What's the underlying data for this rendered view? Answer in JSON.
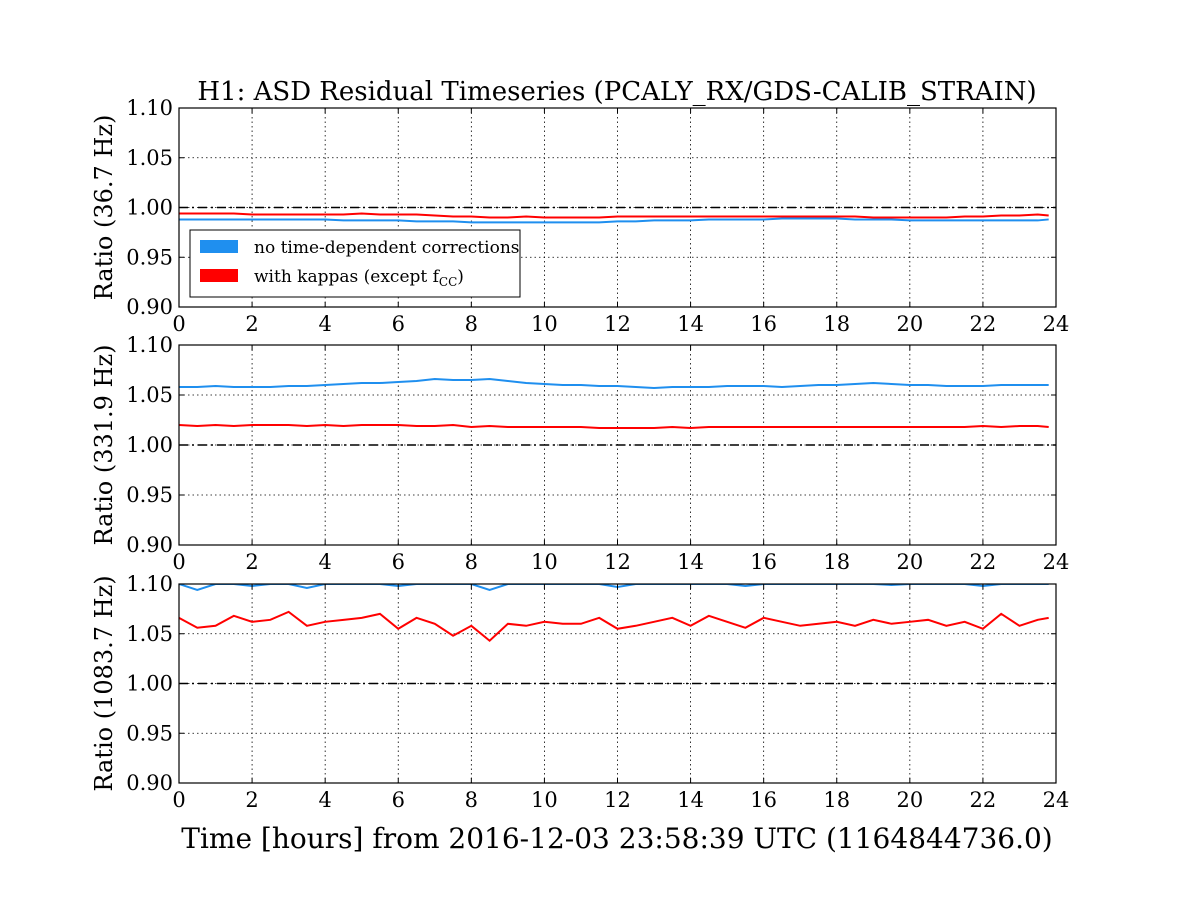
{
  "title": "H1: ASD Residual Timeseries (PCALY_RX/GDS-CALIB_STRAIN)",
  "xlabel": "Time [hours] from 2016-12-03 23:58:39 UTC (1164844736.0)",
  "colors": {
    "no_correction": "#1f8fef",
    "with_kappas": "#ff0000",
    "reference": "#000000"
  },
  "legend": {
    "placement": "lower-left of top panel",
    "entries": [
      {
        "label": "no time-dependent corrections",
        "color": "#1f8fef"
      },
      {
        "label": "with kappas (except f",
        "subscript": "CC",
        "suffix": ")",
        "color": "#ff0000"
      }
    ]
  },
  "chart_data": [
    {
      "type": "line",
      "ylabel": "Ratio (36.7 Hz)",
      "xlim": [
        0,
        24
      ],
      "ylim": [
        0.9,
        1.1
      ],
      "xticks": [
        "0",
        "2",
        "4",
        "6",
        "8",
        "10",
        "12",
        "14",
        "16",
        "18",
        "20",
        "22",
        "24"
      ],
      "yticks": [
        "0.90",
        "0.95",
        "1.00",
        "1.05",
        "1.10"
      ],
      "grid": true,
      "reference_line": 1.0,
      "x": [
        0.0,
        0.5,
        1.0,
        1.5,
        2.0,
        2.5,
        3.0,
        3.5,
        4.0,
        4.5,
        5.0,
        5.5,
        6.0,
        6.5,
        7.0,
        7.5,
        8.0,
        8.5,
        9.0,
        9.5,
        10.0,
        10.5,
        11.0,
        11.5,
        12.0,
        12.5,
        13.0,
        13.5,
        14.0,
        14.5,
        15.0,
        15.5,
        16.0,
        16.5,
        17.0,
        17.5,
        18.0,
        18.5,
        19.0,
        19.5,
        20.0,
        20.5,
        21.0,
        21.5,
        22.0,
        22.5,
        23.0,
        23.5,
        23.8
      ],
      "series": [
        {
          "name": "no time-dependent corrections",
          "color": "#1f8fef",
          "values": [
            0.988,
            0.988,
            0.988,
            0.988,
            0.988,
            0.988,
            0.988,
            0.988,
            0.988,
            0.987,
            0.987,
            0.987,
            0.987,
            0.986,
            0.986,
            0.986,
            0.985,
            0.985,
            0.985,
            0.985,
            0.985,
            0.985,
            0.985,
            0.985,
            0.986,
            0.986,
            0.987,
            0.987,
            0.987,
            0.988,
            0.988,
            0.988,
            0.988,
            0.989,
            0.989,
            0.989,
            0.989,
            0.988,
            0.988,
            0.988,
            0.987,
            0.987,
            0.987,
            0.987,
            0.987,
            0.987,
            0.987,
            0.987,
            0.988
          ]
        },
        {
          "name": "with kappas (except fCC)",
          "color": "#ff0000",
          "values": [
            0.994,
            0.994,
            0.994,
            0.994,
            0.993,
            0.993,
            0.993,
            0.993,
            0.993,
            0.993,
            0.994,
            0.993,
            0.993,
            0.993,
            0.992,
            0.991,
            0.991,
            0.99,
            0.99,
            0.991,
            0.99,
            0.99,
            0.99,
            0.99,
            0.991,
            0.991,
            0.991,
            0.991,
            0.991,
            0.991,
            0.991,
            0.991,
            0.991,
            0.991,
            0.991,
            0.991,
            0.991,
            0.991,
            0.99,
            0.99,
            0.99,
            0.99,
            0.99,
            0.991,
            0.991,
            0.992,
            0.992,
            0.993,
            0.992
          ]
        }
      ]
    },
    {
      "type": "line",
      "ylabel": "Ratio (331.9 Hz)",
      "xlim": [
        0,
        24
      ],
      "ylim": [
        0.9,
        1.1
      ],
      "xticks": [
        "0",
        "2",
        "4",
        "6",
        "8",
        "10",
        "12",
        "14",
        "16",
        "18",
        "20",
        "22",
        "24"
      ],
      "yticks": [
        "0.90",
        "0.95",
        "1.00",
        "1.05",
        "1.10"
      ],
      "grid": true,
      "reference_line": 1.0,
      "x": [
        0.0,
        0.5,
        1.0,
        1.5,
        2.0,
        2.5,
        3.0,
        3.5,
        4.0,
        4.5,
        5.0,
        5.5,
        6.0,
        6.5,
        7.0,
        7.5,
        8.0,
        8.5,
        9.0,
        9.5,
        10.0,
        10.5,
        11.0,
        11.5,
        12.0,
        12.5,
        13.0,
        13.5,
        14.0,
        14.5,
        15.0,
        15.5,
        16.0,
        16.5,
        17.0,
        17.5,
        18.0,
        18.5,
        19.0,
        19.5,
        20.0,
        20.5,
        21.0,
        21.5,
        22.0,
        22.5,
        23.0,
        23.5,
        23.8
      ],
      "series": [
        {
          "name": "no time-dependent corrections",
          "color": "#1f8fef",
          "values": [
            1.058,
            1.058,
            1.059,
            1.058,
            1.058,
            1.058,
            1.059,
            1.059,
            1.06,
            1.061,
            1.062,
            1.062,
            1.063,
            1.064,
            1.066,
            1.065,
            1.065,
            1.066,
            1.064,
            1.062,
            1.061,
            1.06,
            1.06,
            1.059,
            1.059,
            1.058,
            1.057,
            1.058,
            1.058,
            1.058,
            1.059,
            1.059,
            1.059,
            1.058,
            1.059,
            1.06,
            1.06,
            1.061,
            1.062,
            1.061,
            1.06,
            1.06,
            1.059,
            1.059,
            1.059,
            1.06,
            1.06,
            1.06,
            1.06
          ]
        },
        {
          "name": "with kappas (except fCC)",
          "color": "#ff0000",
          "values": [
            1.02,
            1.019,
            1.02,
            1.019,
            1.02,
            1.02,
            1.02,
            1.019,
            1.02,
            1.019,
            1.02,
            1.02,
            1.02,
            1.019,
            1.019,
            1.02,
            1.018,
            1.019,
            1.018,
            1.018,
            1.018,
            1.018,
            1.018,
            1.017,
            1.017,
            1.017,
            1.017,
            1.018,
            1.017,
            1.018,
            1.018,
            1.018,
            1.018,
            1.018,
            1.018,
            1.018,
            1.018,
            1.018,
            1.018,
            1.018,
            1.018,
            1.018,
            1.018,
            1.018,
            1.019,
            1.018,
            1.019,
            1.019,
            1.018
          ]
        }
      ]
    },
    {
      "type": "line",
      "ylabel": "Ratio (1083.7 Hz)",
      "xlim": [
        0,
        24
      ],
      "ylim": [
        0.9,
        1.1
      ],
      "xticks": [
        "0",
        "2",
        "4",
        "6",
        "8",
        "10",
        "12",
        "14",
        "16",
        "18",
        "20",
        "22",
        "24"
      ],
      "yticks": [
        "0.90",
        "0.95",
        "1.00",
        "1.05",
        "1.10"
      ],
      "grid": true,
      "reference_line": 1.0,
      "x": [
        0.0,
        0.5,
        1.0,
        1.5,
        2.0,
        2.5,
        3.0,
        3.5,
        4.0,
        4.5,
        5.0,
        5.5,
        6.0,
        6.5,
        7.0,
        7.5,
        8.0,
        8.5,
        9.0,
        9.5,
        10.0,
        10.5,
        11.0,
        11.5,
        12.0,
        12.5,
        13.0,
        13.5,
        14.0,
        14.5,
        15.0,
        15.5,
        16.0,
        16.5,
        17.0,
        17.5,
        18.0,
        18.5,
        19.0,
        19.5,
        20.0,
        20.5,
        21.0,
        21.5,
        22.0,
        22.5,
        23.0,
        23.5,
        23.8
      ],
      "series": [
        {
          "name": "no time-dependent corrections",
          "color": "#1f8fef",
          "values": [
            1.1,
            1.094,
            1.1,
            1.1,
            1.098,
            1.1,
            1.1,
            1.096,
            1.1,
            1.1,
            1.1,
            1.1,
            1.098,
            1.1,
            1.1,
            1.1,
            1.1,
            1.094,
            1.1,
            1.1,
            1.1,
            1.1,
            1.1,
            1.1,
            1.097,
            1.1,
            1.1,
            1.1,
            1.1,
            1.1,
            1.1,
            1.098,
            1.1,
            1.1,
            1.1,
            1.1,
            1.1,
            1.1,
            1.1,
            1.099,
            1.1,
            1.1,
            1.1,
            1.1,
            1.098,
            1.1,
            1.1,
            1.1,
            1.1
          ]
        },
        {
          "name": "with kappas (except fCC)",
          "color": "#ff0000",
          "values": [
            1.066,
            1.056,
            1.058,
            1.068,
            1.062,
            1.064,
            1.072,
            1.058,
            1.062,
            1.064,
            1.066,
            1.07,
            1.055,
            1.066,
            1.06,
            1.048,
            1.058,
            1.043,
            1.06,
            1.058,
            1.062,
            1.06,
            1.06,
            1.066,
            1.055,
            1.058,
            1.062,
            1.066,
            1.058,
            1.068,
            1.062,
            1.056,
            1.066,
            1.062,
            1.058,
            1.06,
            1.062,
            1.058,
            1.064,
            1.06,
            1.062,
            1.064,
            1.058,
            1.062,
            1.055,
            1.07,
            1.058,
            1.064,
            1.066
          ]
        }
      ]
    }
  ]
}
